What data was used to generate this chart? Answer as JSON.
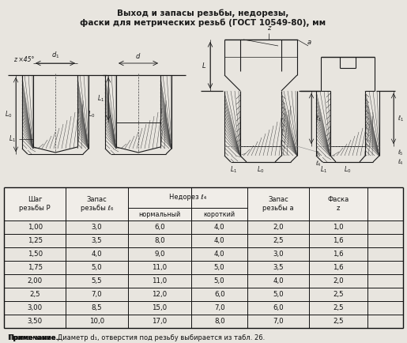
{
  "title_line1": "Выход и запасы резьбы, недорезы,",
  "title_line2": "фаски для метрических резьб (ГОСТ 10549-80), мм",
  "table_data": [
    [
      "1,00",
      "3,0",
      "6,0",
      "4,0",
      "2,0",
      "1,0"
    ],
    [
      "1,25",
      "3,5",
      "8,0",
      "4,0",
      "2,5",
      "1,6"
    ],
    [
      "1,50",
      "4,0",
      "9,0",
      "4,0",
      "3,0",
      "1,6"
    ],
    [
      "1,75",
      "5,0",
      "11,0",
      "5,0",
      "3,5",
      "1,6"
    ],
    [
      "2,00",
      "5,5",
      "11,0",
      "5,0",
      "4,0",
      "2,0"
    ],
    [
      "2,5",
      "7,0",
      "12,0",
      "6,0",
      "5,0",
      "2,5"
    ],
    [
      "3,00",
      "8,5",
      "15,0",
      "7,0",
      "6,0",
      "2,5"
    ],
    [
      "3,50",
      "10,0",
      "17,0",
      "8,0",
      "7,0",
      "2,5"
    ]
  ],
  "note_bold": "Примечание..",
  "note_regular": " Диаметр d₁, отверстия под резьбу выбирается из табл. 26.",
  "bg_color": "#e8e5df",
  "line_color": "#1a1a1a",
  "hatch_color": "#444444"
}
